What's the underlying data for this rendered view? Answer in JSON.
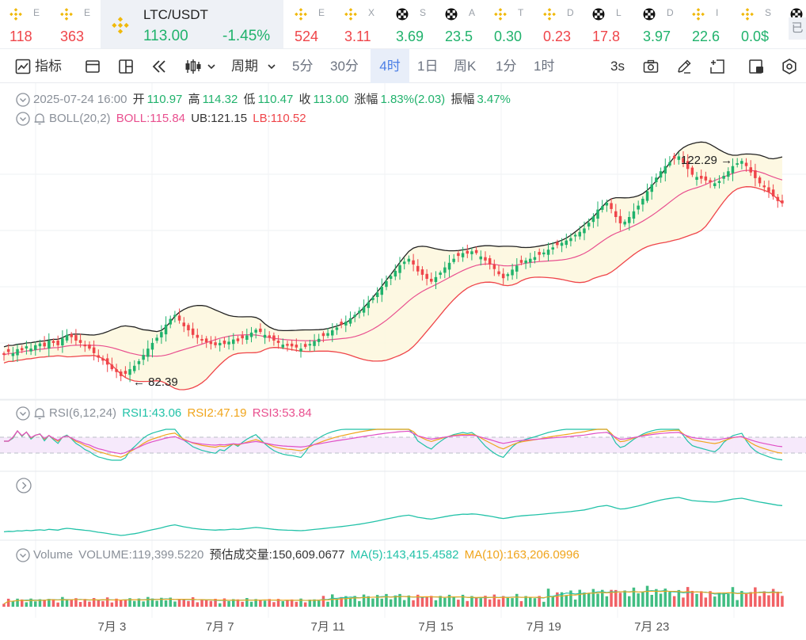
{
  "tickers": [
    {
      "name": "E",
      "value": "118",
      "dir": "down",
      "icon": "bnb-logo-icon"
    },
    {
      "name": "E",
      "value": "363",
      "dir": "down",
      "icon": "bnb-logo-icon"
    },
    {
      "name": "E",
      "value": "524",
      "dir": "down",
      "icon": "bnb-logo-icon"
    },
    {
      "name": "X",
      "value": "3.11",
      "dir": "down",
      "icon": "bnb-logo-icon"
    },
    {
      "name": "S",
      "value": "3.69",
      "dir": "up",
      "icon": "checker-logo-icon"
    },
    {
      "name": "A",
      "value": "23.5",
      "dir": "up",
      "icon": "checker-logo-icon"
    },
    {
      "name": "T",
      "value": "0.30",
      "dir": "up",
      "icon": "bnb-logo-icon"
    },
    {
      "name": "D",
      "value": "0.23",
      "dir": "down",
      "icon": "bnb-logo-icon"
    },
    {
      "name": "L",
      "value": "17.8",
      "dir": "down",
      "icon": "checker-logo-icon"
    },
    {
      "name": "D",
      "value": "3.97",
      "dir": "up",
      "icon": "checker-logo-icon"
    },
    {
      "name": "I",
      "value": "22.6",
      "dir": "up",
      "icon": "bnb-logo-icon"
    },
    {
      "name": "S",
      "value": "0.0$",
      "dir": "up",
      "icon": "bnb-logo-icon"
    },
    {
      "name": "",
      "value": "",
      "dir": "up",
      "icon": "checker-logo-icon"
    }
  ],
  "active_ticker": {
    "symbol": "LTC/USDT",
    "price": "113.00",
    "change": "-1.45%"
  },
  "ticker_more_label": "已",
  "toolbar": {
    "indicator_label": "指标",
    "period_label": "周期",
    "intervals": [
      "5分",
      "30分",
      "4时",
      "1日",
      "周K",
      "1分",
      "1时"
    ],
    "active_interval": "4时",
    "refresh_label": "3s"
  },
  "ohlc_legend": {
    "datetime": "2025-07-24 16:00",
    "open_label": "开",
    "open": "110.97",
    "high_label": "高",
    "high": "114.32",
    "low_label": "低",
    "low": "110.47",
    "close_label": "收",
    "close": "113.00",
    "change_label": "涨幅",
    "change": "1.83%(2.03)",
    "amplitude_label": "振幅",
    "amplitude": "3.47%"
  },
  "boll_legend": {
    "name": "BOLL(20,2)",
    "boll": "BOLL:115.84",
    "ub": "UB:121.15",
    "lb": "LB:110.52"
  },
  "rsi_legend": {
    "name": "RSI(6,12,24)",
    "rsi1": "RSI1:43.06",
    "rsi2": "RSI2:47.19",
    "rsi3": "RSI3:53.84"
  },
  "volume_legend": {
    "name": "Volume",
    "volume": "VOLUME:119,399.5220",
    "estimated": "预估成交量:150,609.0677",
    "ma5": "MA(5):143,415.4582",
    "ma10": "MA(10):163,206.0996"
  },
  "chart_data": {
    "type": "candlestick",
    "symbol": "LTC/USDT",
    "interval": "4h",
    "price_range": [
      80,
      125
    ],
    "price_extremes": {
      "high": "122.29",
      "low": "82.39"
    },
    "close_series": [
      86.5,
      87.0,
      86.8,
      87.5,
      87.3,
      88.0,
      87.6,
      88.2,
      88.5,
      88.0,
      89.0,
      88.6,
      88.2,
      89.4,
      90.0,
      89.6,
      89.0,
      88.6,
      88.0,
      87.6,
      86.8,
      86.0,
      85.5,
      84.8,
      84.0,
      83.5,
      82.8,
      83.2,
      84.0,
      84.6,
      85.4,
      86.5,
      87.6,
      88.6,
      89.5,
      90.5,
      91.8,
      92.8,
      93.5,
      92.5,
      91.5,
      90.8,
      90.0,
      89.5,
      89.0,
      88.7,
      88.4,
      88.2,
      88.6,
      88.4,
      88.8,
      89.2,
      88.9,
      89.4,
      89.9,
      90.4,
      90.9,
      90.5,
      90.0,
      89.5,
      89.0,
      88.6,
      88.3,
      88.1,
      88.0,
      87.8,
      87.6,
      87.9,
      88.4,
      88.9,
      89.3,
      89.8,
      90.3,
      90.8,
      91.3,
      91.8,
      92.3,
      92.9,
      93.5,
      94.2,
      94.9,
      95.7,
      96.5,
      97.4,
      98.4,
      99.4,
      100.3,
      101.2,
      102.2,
      102.8,
      103.3,
      102.3,
      101.1,
      100.5,
      99.8,
      99.3,
      100.1,
      100.9,
      101.8,
      102.6,
      103.3,
      103.8,
      104.3,
      104.2,
      104.6,
      104.3,
      103.7,
      103.0,
      102.3,
      101.5,
      100.6,
      99.9,
      100.6,
      101.4,
      102.1,
      102.6,
      103.0,
      103.3,
      103.6,
      104.0,
      104.4,
      104.9,
      105.3,
      105.7,
      106.1,
      106.5,
      106.9,
      107.5,
      108.0,
      108.6,
      109.6,
      110.7,
      111.9,
      112.5,
      113.1,
      112.0,
      110.6,
      109.5,
      109.8,
      110.6,
      111.6,
      112.6,
      113.8,
      115.1,
      116.3,
      117.5,
      118.6,
      119.5,
      120.2,
      120.8,
      121.2,
      120.1,
      119.0,
      118.0,
      117.6,
      117.3,
      117.0,
      116.7,
      116.5,
      116.9,
      117.8,
      118.6,
      119.5,
      120.0,
      120.4,
      119.5,
      118.4,
      117.4,
      116.5,
      115.8,
      115.0,
      114.2,
      113.4,
      113.0
    ],
    "x_labels": [
      "7月 3",
      "7月 7",
      "7月 11",
      "7月 15",
      "7月 19",
      "7月 23"
    ],
    "x_label_candle_index": [
      24,
      48,
      72,
      96,
      120,
      144
    ],
    "boll": {
      "period": 20,
      "stddev": 2,
      "boll": 115.84,
      "ub": 121.15,
      "lb": 110.52
    },
    "rsi": {
      "rsi1": 43.06,
      "rsi2": 47.19,
      "rsi3": 53.84,
      "bands": [
        30,
        70
      ]
    },
    "volume": {
      "volume": 119399.522,
      "estimated": 150609.0677,
      "ma5": 143415.4582,
      "ma10": 163206.0996
    },
    "colors": {
      "up": "#20b26c",
      "down": "#ef454a",
      "boll_mid": "#e9508f",
      "boll_ub": "#222222",
      "boll_lb": "#ef454a",
      "rsi1": "#22c2a8",
      "rsi2": "#f0a51c",
      "rsi3": "#e04fc6",
      "accent": "#4c7fe6"
    }
  }
}
